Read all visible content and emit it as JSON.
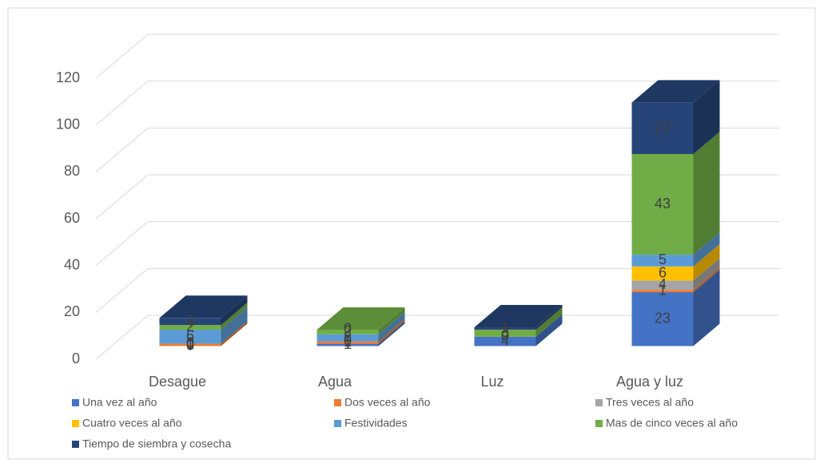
{
  "chart_data": {
    "type": "bar3d_stacked",
    "categories": [
      "Desague",
      "Agua",
      "Luz",
      "Agua y luz"
    ],
    "series": [
      {
        "name": "Una vez al año",
        "color": "#4472c4",
        "values": [
          0,
          1,
          4,
          23
        ]
      },
      {
        "name": "Dos veces al año",
        "color": "#ed7d31",
        "values": [
          1,
          1,
          0,
          1
        ]
      },
      {
        "name": "Tres veces al año",
        "color": "#a5a5a5",
        "values": [
          0,
          0,
          0,
          4
        ]
      },
      {
        "name": "Cuatro veces al año",
        "color": "#ffc000",
        "values": [
          0,
          0,
          0,
          6
        ]
      },
      {
        "name": "Festividades",
        "color": "#5b9bd5",
        "values": [
          6,
          3,
          0,
          5
        ]
      },
      {
        "name": "Mas de cinco veces al año",
        "color": "#70ad47",
        "values": [
          2,
          2,
          3,
          43
        ]
      },
      {
        "name": "Tiempo de siembra y cosecha",
        "color": "#264478",
        "values": [
          3,
          0,
          1,
          22
        ]
      }
    ],
    "ylim": [
      0,
      120
    ],
    "yticks": [
      0,
      20,
      40,
      60,
      80,
      100,
      120
    ],
    "grid": true,
    "legend": "bottom"
  }
}
